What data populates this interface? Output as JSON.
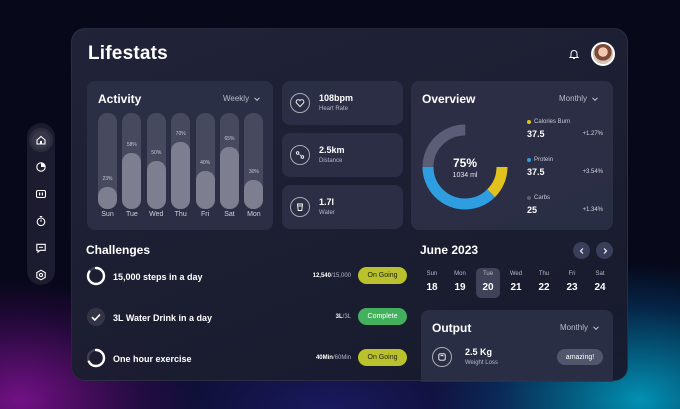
{
  "app": {
    "title": "Lifestats"
  },
  "sidebar": {
    "items": [
      "home-icon",
      "pie-chart-icon",
      "media-icon",
      "timer-icon",
      "chat-icon",
      "settings-icon"
    ]
  },
  "activity": {
    "title": "Activity",
    "period": "Weekly",
    "days": [
      {
        "day": "Sun",
        "pct": 23,
        "label": "23%"
      },
      {
        "day": "Tue",
        "pct": 58,
        "label": "58%"
      },
      {
        "day": "Wed",
        "pct": 50,
        "label": "50%"
      },
      {
        "day": "Thu",
        "pct": 70,
        "label": "70%"
      },
      {
        "day": "Fri",
        "pct": 40,
        "label": "40%"
      },
      {
        "day": "Sat",
        "pct": 65,
        "label": "65%"
      },
      {
        "day": "Mon",
        "pct": 30,
        "label": "30%"
      }
    ]
  },
  "stats": [
    {
      "icon": "heart-icon",
      "value": "108bpm",
      "label": "Heart Rate"
    },
    {
      "icon": "route-icon",
      "value": "2.5km",
      "label": "Distance"
    },
    {
      "icon": "cup-icon",
      "value": "1.7l",
      "label": "Water"
    }
  ],
  "overview": {
    "title": "Overview",
    "period": "Monthly",
    "center_pct": "75%",
    "center_sub": "1034 ml",
    "rows": [
      {
        "name": "Calories Burn",
        "value": "37.5",
        "change": "+1.27%",
        "color": "#e2c21c"
      },
      {
        "name": "Protein",
        "value": "37.5",
        "change": "+3.54%",
        "color": "#2f9ee0"
      },
      {
        "name": "Carbs",
        "value": "25",
        "change": "+1.34%",
        "color": "#5a5d75"
      }
    ],
    "chart_data": {
      "type": "pie",
      "categories": [
        "Calories Burn",
        "Protein",
        "Carbs"
      ],
      "values": [
        37.5,
        37.5,
        25
      ]
    }
  },
  "challenges": {
    "title": "Challenges",
    "items": [
      {
        "name": "15,000 steps in a day",
        "progress_done": "12,540",
        "progress_total": "/15,000",
        "status": "On Going",
        "fraction": 0.84
      },
      {
        "name": "3L Water Drink in a day",
        "progress_done": "3L",
        "progress_total": "/3L",
        "status": "Complete",
        "fraction": 1
      },
      {
        "name": "One hour exercise",
        "progress_done": "40Min",
        "progress_total": "/60Min",
        "status": "On Going",
        "fraction": 0.67
      }
    ]
  },
  "calendar": {
    "month": "June 2023",
    "days": [
      {
        "name": "Sun",
        "date": "18"
      },
      {
        "name": "Mon",
        "date": "19"
      },
      {
        "name": "Tue",
        "date": "20",
        "selected": true
      },
      {
        "name": "Wed",
        "date": "21"
      },
      {
        "name": "Thu",
        "date": "22"
      },
      {
        "name": "Fri",
        "date": "23"
      },
      {
        "name": "Sat",
        "date": "24"
      }
    ]
  },
  "output": {
    "title": "Output",
    "period": "Monthly",
    "value": "2.5 Kg",
    "label": "Weight Loss",
    "badge": "amazing!"
  },
  "colors": {
    "accent_yellow": "#e2c21c",
    "accent_blue": "#2f9ee0",
    "badge_green": "#43b05e",
    "badge_olive": "#b9c22c"
  }
}
